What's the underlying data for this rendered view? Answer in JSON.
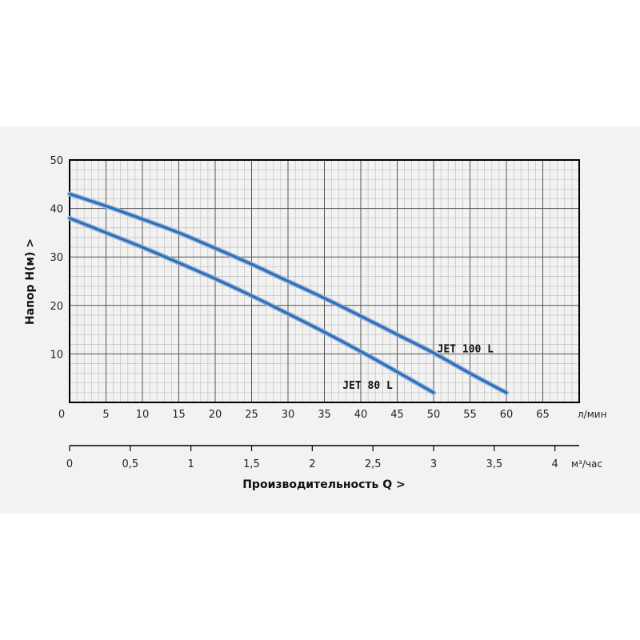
{
  "chart_data": {
    "type": "line",
    "ylabel": "Напор   H(м)  >",
    "xlabel_bottom": "Производительность Q  >",
    "x_unit": "л/мин",
    "x2_unit": "м³/час",
    "xlim": [
      0,
      70
    ],
    "ylim": [
      0,
      50
    ],
    "x2lim": [
      0,
      4.2
    ],
    "x_ticks": [
      0,
      5,
      10,
      15,
      20,
      25,
      30,
      35,
      40,
      45,
      50,
      55,
      60,
      65
    ],
    "y_ticks": [
      10,
      20,
      30,
      40,
      50
    ],
    "x2_ticks": [
      "0",
      "0,5",
      "1",
      "1,5",
      "2",
      "2,5",
      "3",
      "3,5",
      "4"
    ],
    "x2_tick_values": [
      0,
      0.5,
      1,
      1.5,
      2,
      2.5,
      3,
      3.5,
      4
    ],
    "grid": true,
    "line_color": "#2f6db5",
    "series": [
      {
        "name": "JET 100 L",
        "x": [
          0,
          5,
          10,
          15,
          20,
          25,
          30,
          35,
          40,
          45,
          50,
          55,
          60
        ],
        "y": [
          43,
          40.5,
          37.8,
          35,
          31.8,
          28.5,
          25,
          21.5,
          17.8,
          14,
          10.2,
          6,
          2
        ]
      },
      {
        "name": "JET 80 L",
        "x": [
          0,
          5,
          10,
          15,
          20,
          25,
          30,
          35,
          40,
          45,
          50
        ],
        "y": [
          38,
          35,
          32,
          28.8,
          25.5,
          22,
          18.3,
          14.5,
          10.5,
          6.3,
          2
        ]
      }
    ]
  }
}
